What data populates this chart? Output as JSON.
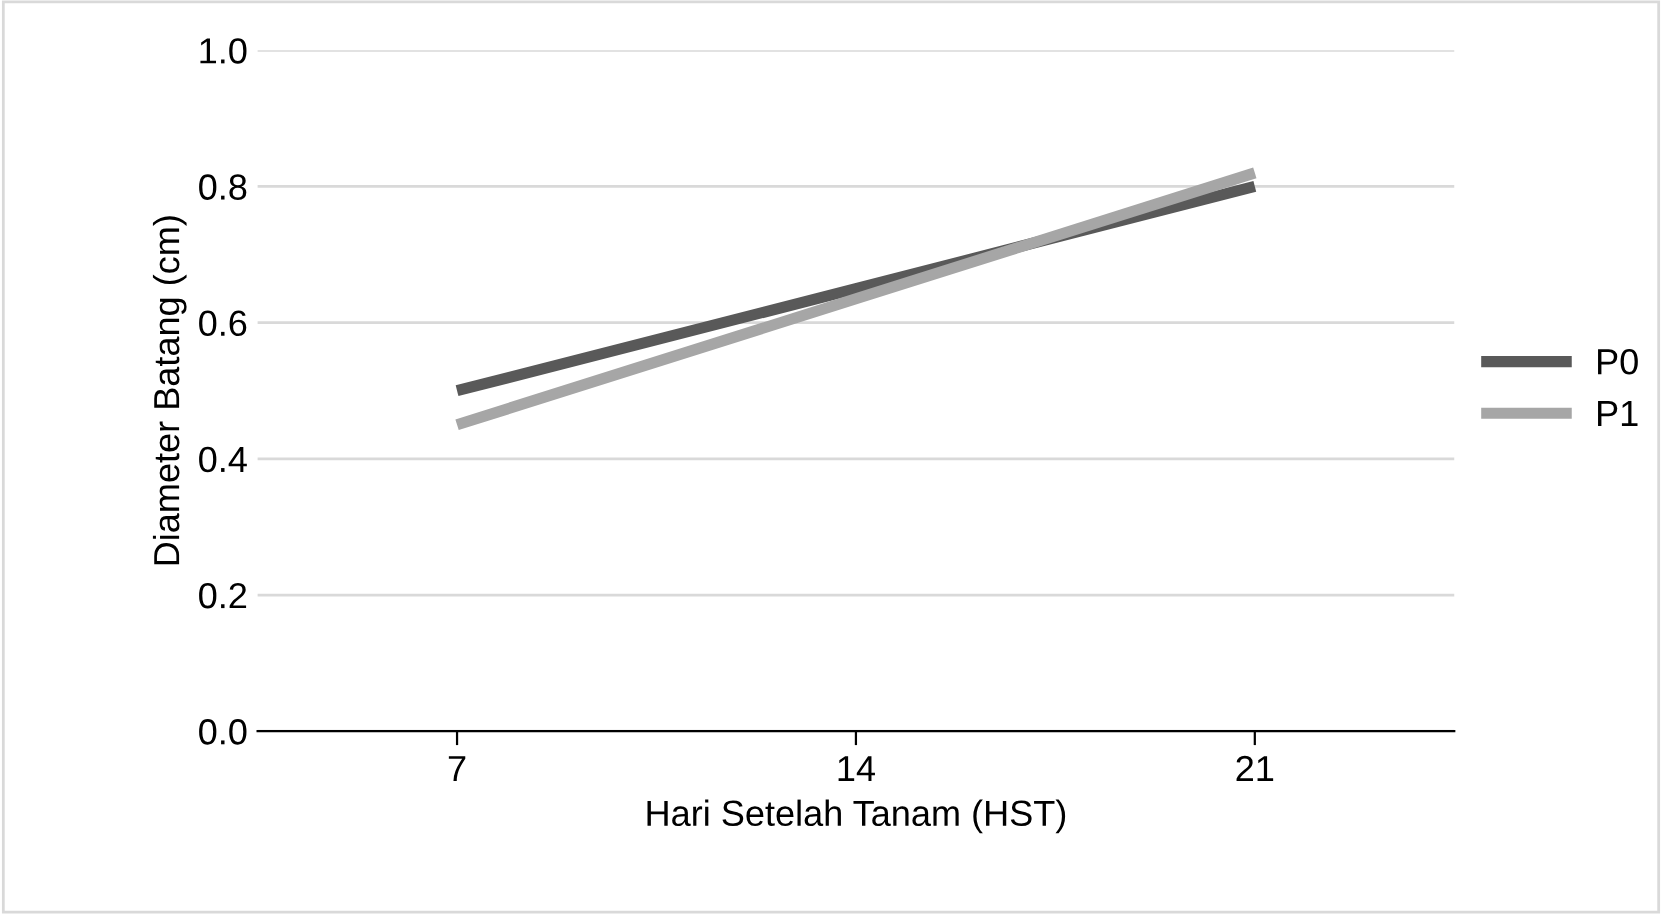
{
  "chart_data": {
    "type": "line",
    "xlabel": "Hari Setelah Tanam (HST)",
    "ylabel": "Diameter Batang (cm)",
    "categories": [
      "7",
      "14",
      "21"
    ],
    "series": [
      {
        "name": "P0",
        "color": "#595959",
        "values": [
          0.5,
          0.65,
          0.8
        ]
      },
      {
        "name": "P1",
        "color": "#a6a6a6",
        "values": [
          0.45,
          0.635,
          0.82
        ]
      }
    ],
    "ylim": [
      0,
      1
    ],
    "yticks": [
      {
        "value": 0,
        "label": "0.0"
      },
      0.2,
      0.4,
      0.6,
      0.8,
      {
        "value": 1,
        "label": "1.0"
      }
    ],
    "grid": "y",
    "legend": "right",
    "marker": "none",
    "line_style": "solid"
  }
}
